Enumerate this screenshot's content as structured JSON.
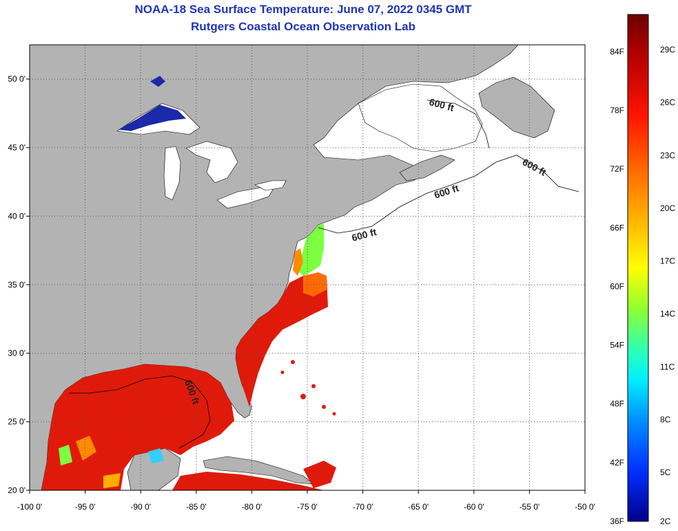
{
  "title": {
    "line1": "NOAA-18 Sea Surface Temperature:  June 07, 2022 0345 GMT",
    "line2": "Rutgers Coastal Ocean Observation Lab"
  },
  "x_axis": {
    "ticks": [
      "-100 0'",
      "-95 0'",
      "-90 0'",
      "-85 0'",
      "-80 0'",
      "-75 0'",
      "-70 0'",
      "-65 0'",
      "-60 0'",
      "-55 0'",
      "-50 0'"
    ],
    "range": [
      -100,
      -50
    ]
  },
  "y_axis": {
    "ticks": [
      "20 0'",
      "25 0'",
      "30 0'",
      "35 0'",
      "40 0'",
      "45 0'",
      "50 0'"
    ],
    "range": [
      20,
      52.5
    ]
  },
  "contour_label": "600 ft",
  "colorbar": {
    "fahrenheit": [
      "84F",
      "78F",
      "72F",
      "66F",
      "60F",
      "54F",
      "48F",
      "42F",
      "36F"
    ],
    "celsius": [
      "29C",
      "26C",
      "23C",
      "20C",
      "17C",
      "14C",
      "11C",
      "8C",
      "5C",
      "2C"
    ],
    "colors": [
      "#7a0000",
      "#c80000",
      "#ff1a00",
      "#ff6a00",
      "#ffae00",
      "#ffff00",
      "#90ff30",
      "#30ffb0",
      "#00f0ff",
      "#0090ff",
      "#0030ff",
      "#0000b0"
    ]
  },
  "colors": {
    "land": "#b3b3b3",
    "ocean_nodata": "#ffffff",
    "grid": "#555555",
    "title": "#1f35b5",
    "sst_warm": "#e01a0a",
    "sst_mid": "#ff8c00",
    "sst_cool": "#7cff40",
    "lake_cold": "#1a2aa8"
  }
}
